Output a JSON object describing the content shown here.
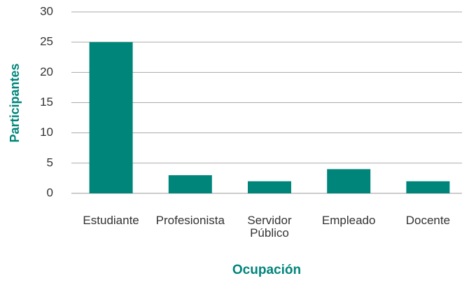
{
  "chart_data": {
    "type": "bar",
    "categories": [
      "Estudiante",
      "Profesionista",
      "Servidor Público",
      "Empleado",
      "Docente"
    ],
    "values": [
      25,
      3,
      2,
      4,
      2
    ],
    "color": "#00857b",
    "xlabel": "Ocupación",
    "ylabel": "Participantes",
    "ylim": [
      0,
      30
    ],
    "yticks": [
      0,
      5,
      10,
      15,
      20,
      25,
      30
    ],
    "grid": true
  }
}
